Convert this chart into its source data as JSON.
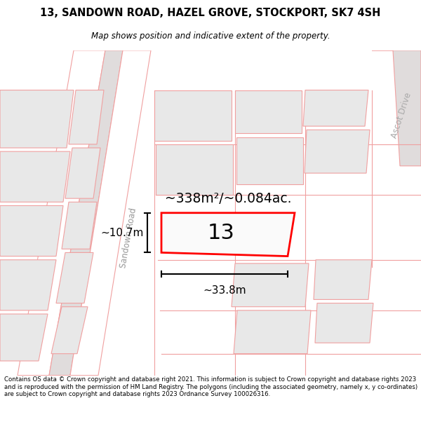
{
  "title": "13, SANDOWN ROAD, HAZEL GROVE, STOCKPORT, SK7 4SH",
  "subtitle": "Map shows position and indicative extent of the property.",
  "footer": "Contains OS data © Crown copyright and database right 2021. This information is subject to Crown copyright and database rights 2023 and is reproduced with the permission of HM Land Registry. The polygons (including the associated geometry, namely x, y co-ordinates) are subject to Crown copyright and database rights 2023 Ordnance Survey 100026316.",
  "area_label": "~338m²/~0.084ac.",
  "number_label": "13",
  "width_label": "~33.8m",
  "height_label": "~10.7m",
  "road_label": "Sandown Road",
  "road_label2": "Ascot Drive",
  "highlight_color": "#ff0000",
  "building_fill": "#e8e8e8",
  "road_line_color": "#f0a0a0",
  "road_bg": "#ffffff",
  "map_bg": "#f8f6f6"
}
